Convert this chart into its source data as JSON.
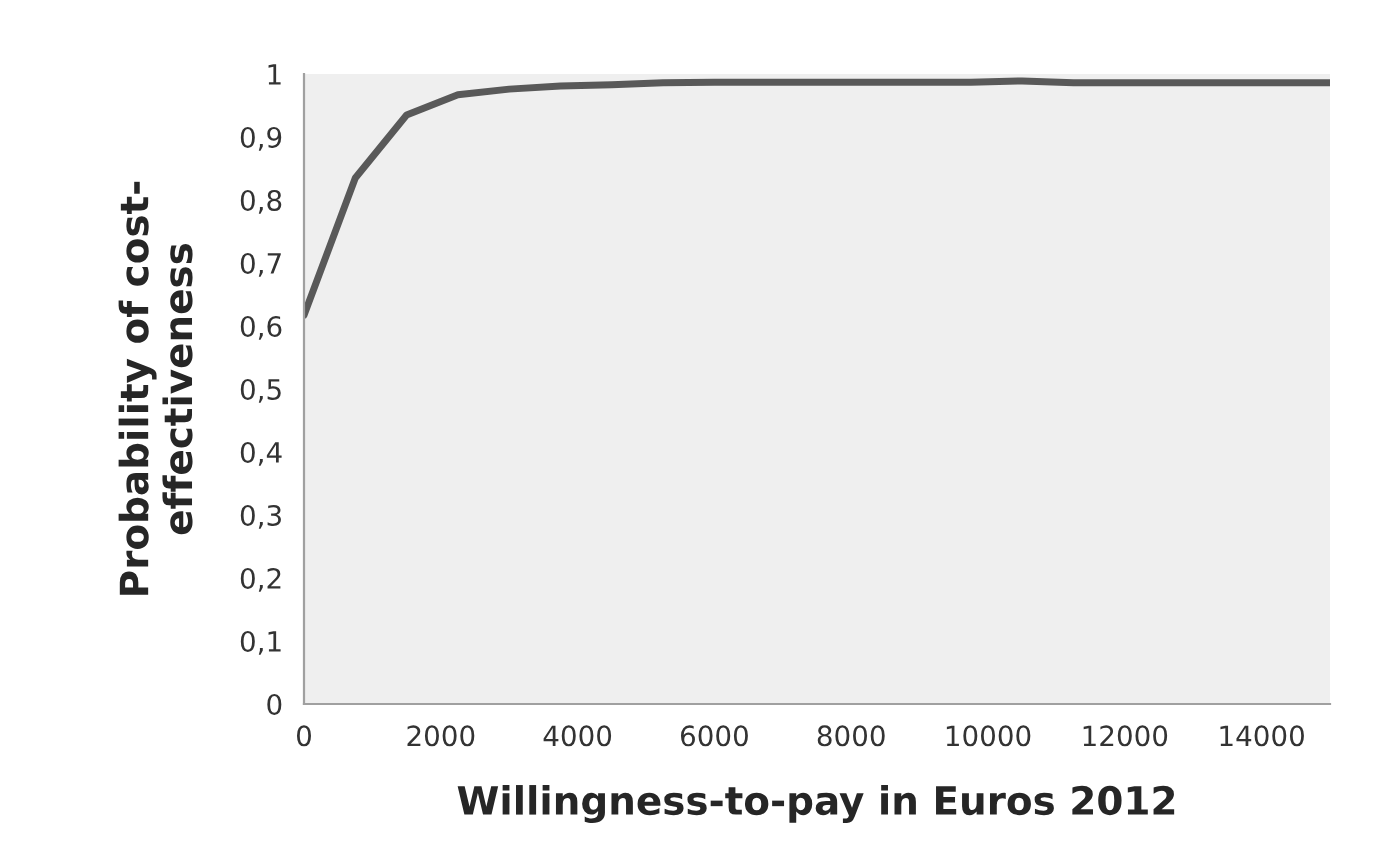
{
  "chart_data": {
    "type": "line",
    "xlabel": "Willingness-to-pay in Euros 2012",
    "ylabel": "Probability of cost-\neffectiveness",
    "x": [
      0,
      750,
      1500,
      2250,
      3000,
      3750,
      4500,
      5250,
      6000,
      7500,
      9000,
      9750,
      10500,
      11250,
      12000,
      13500,
      15000
    ],
    "series": [
      {
        "color": "#595959",
        "values": [
          0.617,
          0.835,
          0.935,
          0.967,
          0.976,
          0.981,
          0.983,
          0.986,
          0.987,
          0.987,
          0.987,
          0.987,
          0.989,
          0.986,
          0.986,
          0.986,
          0.986
        ]
      }
    ],
    "xlim": [
      0,
      15000
    ],
    "xticks": [
      0,
      2000,
      4000,
      6000,
      8000,
      10000,
      12000,
      14000
    ],
    "ylim": [
      0,
      1
    ],
    "yticks": [
      0,
      {
        "value": 0.1,
        "label": "0,1"
      },
      {
        "value": 0.2,
        "label": "0,2"
      },
      {
        "value": 0.3,
        "label": "0,3"
      },
      {
        "value": 0.4,
        "label": "0,4"
      },
      {
        "value": 0.5,
        "label": "0,5"
      },
      {
        "value": 0.6,
        "label": "0,6"
      },
      {
        "value": 0.7,
        "label": "0,7"
      },
      {
        "value": 0.8,
        "label": "0,8"
      },
      {
        "value": 0.9,
        "label": "0,9"
      },
      1
    ],
    "grid": false,
    "marker": "none",
    "line_style": "solid"
  }
}
